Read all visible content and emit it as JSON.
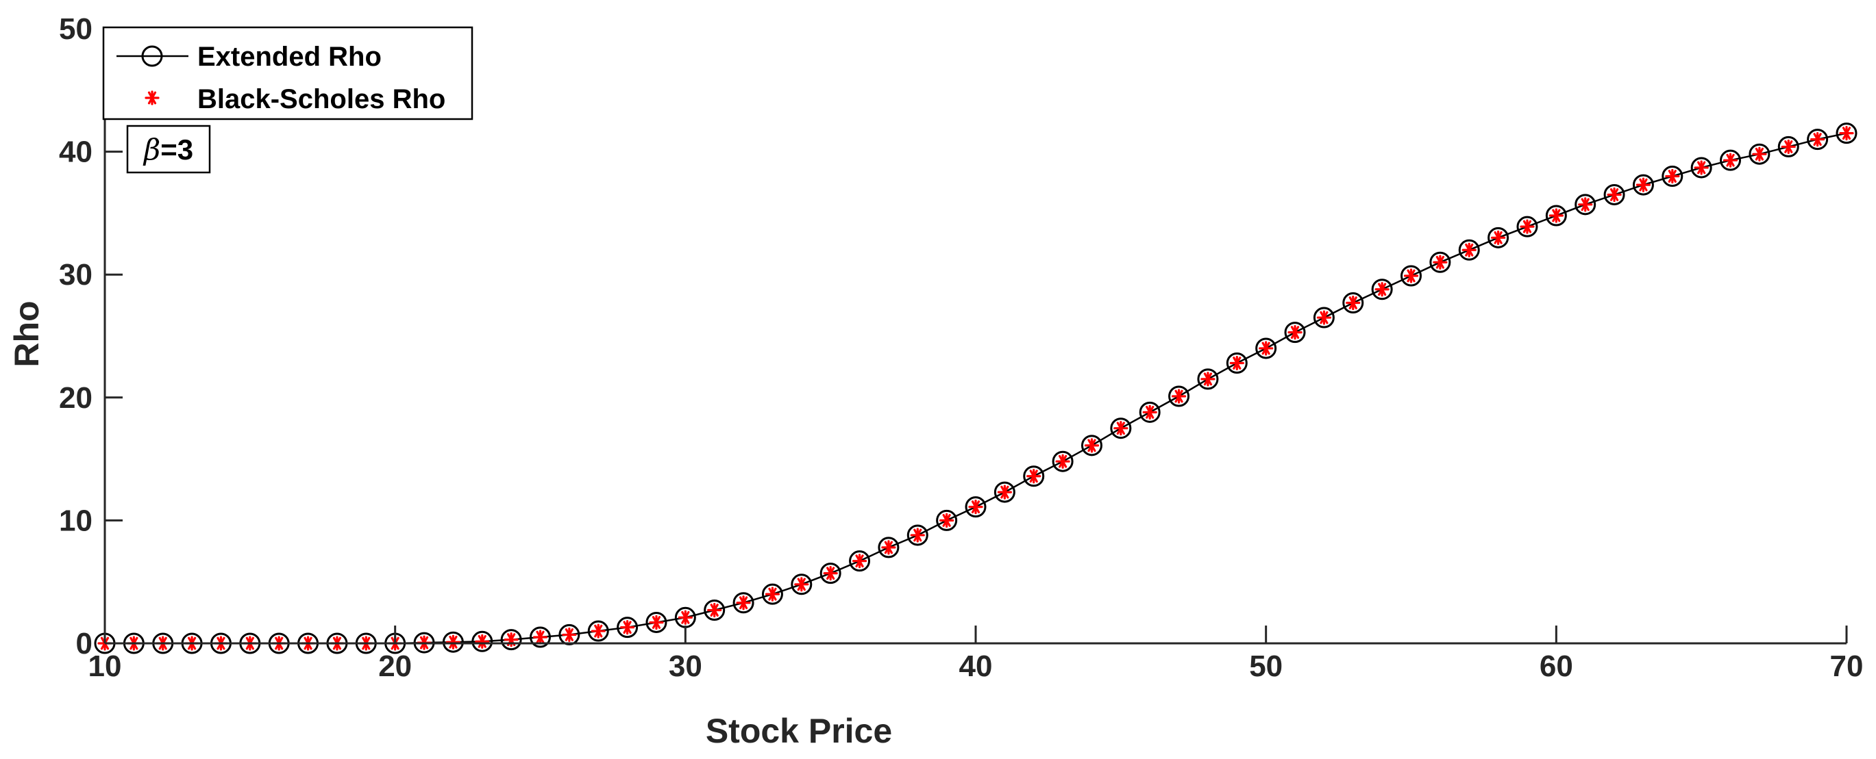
{
  "chart_data": {
    "type": "line",
    "xlabel": "Stock Price",
    "ylabel": "Rho",
    "xlim": [
      10,
      70
    ],
    "ylim": [
      0,
      50
    ],
    "xticks": [
      10,
      20,
      30,
      40,
      50,
      60,
      70
    ],
    "yticks": [
      0,
      10,
      20,
      30,
      40,
      50
    ],
    "grid": false,
    "legend_position": "top-left",
    "annotation": {
      "symbol": "β",
      "text": "=3"
    },
    "x": [
      10,
      11,
      12,
      13,
      14,
      15,
      16,
      17,
      18,
      19,
      20,
      21,
      22,
      23,
      24,
      25,
      26,
      27,
      28,
      29,
      30,
      31,
      32,
      33,
      34,
      35,
      36,
      37,
      38,
      39,
      40,
      41,
      42,
      43,
      44,
      45,
      46,
      47,
      48,
      49,
      50,
      51,
      52,
      53,
      54,
      55,
      56,
      57,
      58,
      59,
      60,
      61,
      62,
      63,
      64,
      65,
      66,
      67,
      68,
      69,
      70
    ],
    "series": [
      {
        "name": "Extended Rho",
        "color": "#000000",
        "marker": "circle",
        "values": [
          0,
          0,
          0,
          0,
          0,
          0,
          0,
          0,
          0,
          0,
          0,
          0.05,
          0.1,
          0.15,
          0.3,
          0.5,
          0.7,
          1.0,
          1.3,
          1.7,
          2.1,
          2.7,
          3.3,
          4.0,
          4.8,
          5.7,
          6.7,
          7.8,
          8.8,
          10.0,
          11.1,
          12.3,
          13.6,
          14.8,
          16.1,
          17.5,
          18.8,
          20.1,
          21.5,
          22.8,
          24.0,
          25.3,
          26.5,
          27.7,
          28.8,
          29.9,
          31.0,
          32.0,
          33.0,
          33.9,
          34.8,
          35.7,
          36.5,
          37.3,
          38.0,
          38.7,
          39.3,
          39.8,
          40.4,
          41.0,
          41.5
        ]
      },
      {
        "name": "Black-Scholes Rho",
        "color": "#ff0000",
        "marker": "asterisk",
        "values": [
          0,
          0,
          0,
          0,
          0,
          0,
          0,
          0,
          0,
          0,
          0,
          0.05,
          0.1,
          0.15,
          0.3,
          0.5,
          0.7,
          1.0,
          1.3,
          1.7,
          2.1,
          2.7,
          3.3,
          4.0,
          4.8,
          5.7,
          6.7,
          7.8,
          8.8,
          10.0,
          11.1,
          12.3,
          13.6,
          14.8,
          16.1,
          17.5,
          18.8,
          20.1,
          21.5,
          22.8,
          24.0,
          25.3,
          26.5,
          27.7,
          28.8,
          29.9,
          31.0,
          32.0,
          33.0,
          33.9,
          34.8,
          35.7,
          36.5,
          37.3,
          38.0,
          38.7,
          39.3,
          39.8,
          40.4,
          41.0,
          41.5
        ]
      }
    ]
  }
}
